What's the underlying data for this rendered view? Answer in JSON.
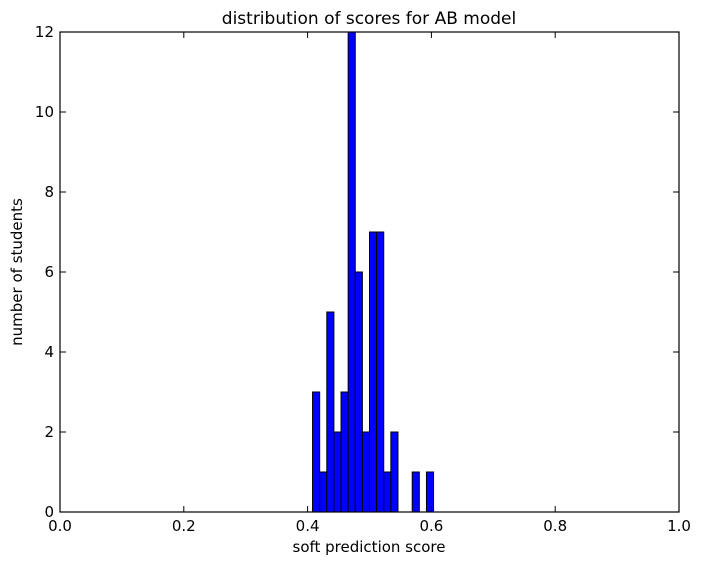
{
  "chart_data": {
    "type": "bar",
    "title": "distribution of scores for AB model",
    "xlabel": "soft prediction score",
    "ylabel": "number of students",
    "xlim": [
      0.0,
      1.0
    ],
    "ylim": [
      0,
      12
    ],
    "x_ticks": [
      "0.0",
      "0.2",
      "0.4",
      "0.6",
      "0.8",
      "1.0"
    ],
    "y_ticks": [
      "0",
      "2",
      "4",
      "6",
      "8",
      "10",
      "12"
    ],
    "bar_color": "#0000ff",
    "edge_color": "#000000",
    "grid": false,
    "bins": [
      {
        "x0": 0.408,
        "x1": 0.4195,
        "count": 3
      },
      {
        "x0": 0.4195,
        "x1": 0.431,
        "count": 1
      },
      {
        "x0": 0.431,
        "x1": 0.4425,
        "count": 5
      },
      {
        "x0": 0.4425,
        "x1": 0.454,
        "count": 2
      },
      {
        "x0": 0.454,
        "x1": 0.4655,
        "count": 3
      },
      {
        "x0": 0.4655,
        "x1": 0.477,
        "count": 12
      },
      {
        "x0": 0.477,
        "x1": 0.4885,
        "count": 6
      },
      {
        "x0": 0.4885,
        "x1": 0.5,
        "count": 2
      },
      {
        "x0": 0.5,
        "x1": 0.5115,
        "count": 7
      },
      {
        "x0": 0.5115,
        "x1": 0.523,
        "count": 7
      },
      {
        "x0": 0.523,
        "x1": 0.5345,
        "count": 1
      },
      {
        "x0": 0.5345,
        "x1": 0.546,
        "count": 2
      },
      {
        "x0": 0.546,
        "x1": 0.5575,
        "count": 0
      },
      {
        "x0": 0.5575,
        "x1": 0.569,
        "count": 0
      },
      {
        "x0": 0.569,
        "x1": 0.5805,
        "count": 1
      },
      {
        "x0": 0.5805,
        "x1": 0.592,
        "count": 0
      },
      {
        "x0": 0.592,
        "x1": 0.6035,
        "count": 1
      }
    ]
  }
}
